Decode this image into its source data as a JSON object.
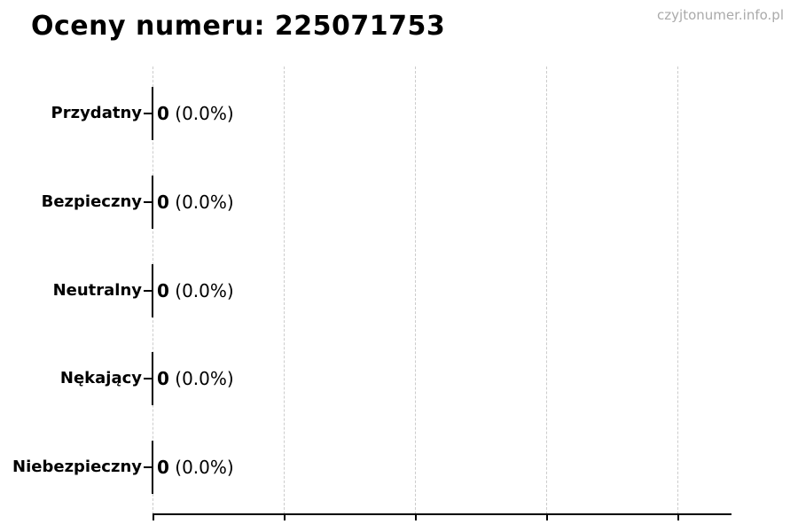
{
  "header": {
    "title": "Oceny numeru: 225071753",
    "watermark": "czyjtonumer.info.pl"
  },
  "chart_data": {
    "type": "bar",
    "orientation": "horizontal",
    "title": "Oceny numeru: 225071753",
    "categories": [
      "Przydatny",
      "Bezpieczny",
      "Neutralny",
      "Nękający",
      "Niebezpieczny"
    ],
    "values": [
      0,
      0,
      0,
      0,
      0
    ],
    "annotations": [
      {
        "count": "0",
        "pct": "(0.0%)"
      },
      {
        "count": "0",
        "pct": "(0.0%)"
      },
      {
        "count": "0",
        "pct": "(0.0%)"
      },
      {
        "count": "0",
        "pct": "(0.0%)"
      },
      {
        "count": "0",
        "pct": "(0.0%)"
      }
    ],
    "xlabel": "",
    "ylabel": "",
    "xlim": [
      0,
      4.4
    ],
    "x_tick_labels": [],
    "gridline_count": 5,
    "grid": true,
    "legend": false,
    "colors": {
      "bar_edge": "#000000",
      "gridline": "#cccccc",
      "axis": "#000000",
      "text": "#000000",
      "watermark": "#aaaaaa"
    }
  }
}
